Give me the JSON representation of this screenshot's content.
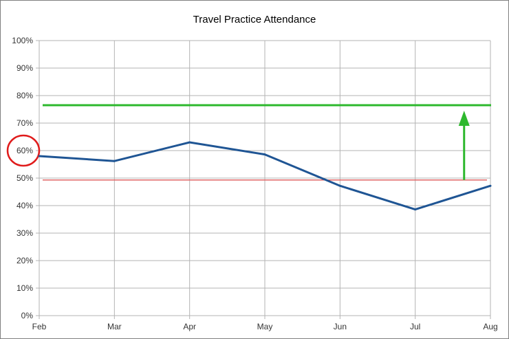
{
  "chart_data": {
    "type": "line",
    "title": "Travel Practice Attendance",
    "xlabel": "",
    "ylabel": "",
    "categories": [
      "Feb",
      "Mar",
      "Apr",
      "May",
      "Jun",
      "Jul",
      "Aug"
    ],
    "ylim": [
      0,
      100
    ],
    "yticks": [
      "0%",
      "10%",
      "20%",
      "30%",
      "40%",
      "50%",
      "60%",
      "70%",
      "80%",
      "90%",
      "100%"
    ],
    "grid": true,
    "legend": "none",
    "series": [
      {
        "values": [
          58,
          56.2,
          63,
          58.6,
          47.2,
          38.6,
          47.2
        ],
        "color": "#1f5594"
      }
    ],
    "annotations": {
      "reference_line": {
        "y": 49.3,
        "color": "#e06666"
      },
      "target_line": {
        "y": 76.5,
        "color": "#2db82d"
      },
      "arrow": {
        "from_y": 49.3,
        "to_y": 74.5,
        "x_category_pos": 5.65,
        "color": "#2db82d"
      },
      "circle_highlight": {
        "tick_label": "60%",
        "color": "#e01b1b"
      }
    }
  }
}
